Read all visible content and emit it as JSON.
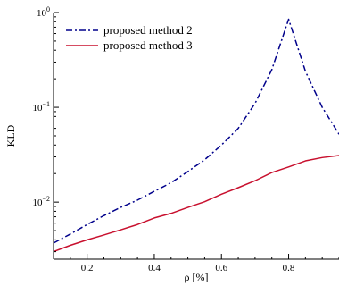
{
  "chart_data": {
    "type": "line",
    "title": "",
    "xlabel": "ρ [%]",
    "ylabel": "KLD",
    "xlim": [
      0.1,
      0.95
    ],
    "ylim": [
      0.0025,
      1.0
    ],
    "yscale": "log",
    "grid": false,
    "legend_position": "top-left",
    "x_ticks": [
      {
        "value": 0.2,
        "label": "0.2"
      },
      {
        "value": 0.4,
        "label": "0.4"
      },
      {
        "value": 0.6,
        "label": "0.6"
      },
      {
        "value": 0.8,
        "label": "0.8"
      }
    ],
    "y_ticks": [
      {
        "value": 0.01,
        "base": "10",
        "exp": "−2"
      },
      {
        "value": 0.1,
        "base": "10",
        "exp": "−1"
      },
      {
        "value": 1.0,
        "base": "10",
        "exp": "0"
      }
    ],
    "series": [
      {
        "name": "proposed method 2",
        "color": "#00008b",
        "dash": "dashdot",
        "x": [
          0.1,
          0.15,
          0.2,
          0.25,
          0.3,
          0.35,
          0.4,
          0.45,
          0.5,
          0.55,
          0.6,
          0.65,
          0.7,
          0.75,
          0.8,
          0.85,
          0.9,
          0.95
        ],
        "y": [
          0.0037,
          0.0046,
          0.0058,
          0.0072,
          0.0088,
          0.0105,
          0.013,
          0.016,
          0.021,
          0.028,
          0.04,
          0.06,
          0.11,
          0.25,
          0.85,
          0.24,
          0.1,
          0.052
        ]
      },
      {
        "name": "proposed method 3",
        "color": "#c8102e",
        "dash": "solid",
        "x": [
          0.1,
          0.15,
          0.2,
          0.25,
          0.3,
          0.35,
          0.4,
          0.45,
          0.5,
          0.55,
          0.6,
          0.65,
          0.7,
          0.75,
          0.8,
          0.85,
          0.9,
          0.95
        ],
        "y": [
          0.003,
          0.0035,
          0.004,
          0.0045,
          0.0051,
          0.0058,
          0.0068,
          0.0076,
          0.0088,
          0.0101,
          0.0121,
          0.0142,
          0.0168,
          0.0205,
          0.0235,
          0.0272,
          0.0295,
          0.031
        ]
      }
    ]
  }
}
